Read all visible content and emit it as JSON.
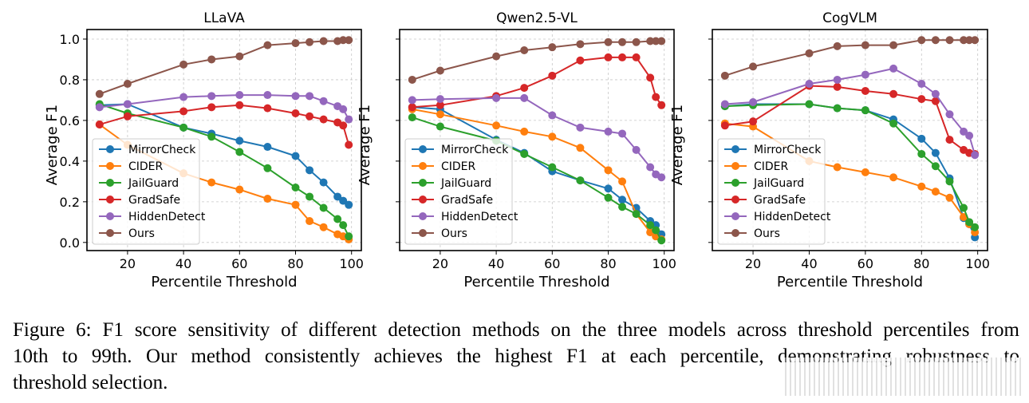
{
  "chart_data": [
    {
      "type": "line",
      "title": "LLaVA",
      "xlabel": "Percentile Threshold",
      "ylabel": "Average F1",
      "xlim": [
        5.5,
        103.5
      ],
      "ylim": [
        -0.04,
        1.047
      ],
      "xticks": [
        20,
        40,
        60,
        80,
        100
      ],
      "yticks": [
        0.0,
        0.2,
        0.4,
        0.6,
        0.8,
        1.0
      ],
      "ytick_labels": [
        "0.0",
        "0.2",
        "0.4",
        "0.6",
        "0.8",
        "1.0"
      ],
      "show_ytick_labels": true,
      "grid": true,
      "legend": "lower-left",
      "x": [
        10,
        20,
        40,
        50,
        60,
        70,
        80,
        85,
        90,
        95,
        97,
        99
      ],
      "series": [
        {
          "name": "MirrorCheck",
          "color": "#1f77b4",
          "values": [
            0.675,
            0.68,
            0.565,
            0.535,
            0.5,
            0.47,
            0.425,
            0.355,
            0.295,
            0.225,
            0.205,
            0.185
          ]
        },
        {
          "name": "CIDER",
          "color": "#ff7f0e",
          "values": [
            0.58,
            0.48,
            0.34,
            0.295,
            0.26,
            0.215,
            0.185,
            0.105,
            0.075,
            0.04,
            0.03,
            0.015
          ]
        },
        {
          "name": "JailGuard",
          "color": "#2ca02c",
          "values": [
            0.68,
            0.635,
            0.565,
            0.52,
            0.445,
            0.365,
            0.27,
            0.225,
            0.17,
            0.115,
            0.085,
            0.03
          ]
        },
        {
          "name": "GradSafe",
          "color": "#d62728",
          "values": [
            0.58,
            0.62,
            0.645,
            0.665,
            0.675,
            0.66,
            0.635,
            0.62,
            0.605,
            0.59,
            0.575,
            0.48
          ]
        },
        {
          "name": "HiddenDetect",
          "color": "#9467bd",
          "values": [
            0.665,
            0.68,
            0.715,
            0.72,
            0.725,
            0.725,
            0.72,
            0.72,
            0.695,
            0.67,
            0.655,
            0.605
          ]
        },
        {
          "name": "Ours",
          "color": "#8c564b",
          "values": [
            0.73,
            0.78,
            0.875,
            0.9,
            0.915,
            0.97,
            0.98,
            0.985,
            0.99,
            0.99,
            0.995,
            0.995
          ]
        }
      ]
    },
    {
      "type": "line",
      "title": "Qwen2.5-VL",
      "xlabel": "Percentile Threshold",
      "ylabel": "Average F1",
      "xlim": [
        5.5,
        103.5
      ],
      "ylim": [
        -0.04,
        1.047
      ],
      "xticks": [
        20,
        40,
        60,
        80,
        100
      ],
      "yticks": [
        0.0,
        0.2,
        0.4,
        0.6,
        0.8,
        1.0
      ],
      "ytick_labels": [
        "0.0",
        "0.2",
        "0.4",
        "0.6",
        "0.8",
        "1.0"
      ],
      "show_ytick_labels": false,
      "grid": true,
      "legend": "lower-left",
      "x": [
        10,
        20,
        40,
        50,
        60,
        70,
        80,
        85,
        90,
        95,
        97,
        99
      ],
      "series": [
        {
          "name": "MirrorCheck",
          "color": "#1f77b4",
          "values": [
            0.665,
            0.655,
            0.505,
            0.44,
            0.35,
            0.305,
            0.265,
            0.21,
            0.17,
            0.105,
            0.085,
            0.04
          ]
        },
        {
          "name": "CIDER",
          "color": "#ff7f0e",
          "values": [
            0.655,
            0.63,
            0.575,
            0.545,
            0.52,
            0.465,
            0.355,
            0.3,
            0.14,
            0.05,
            0.03,
            0.015
          ]
        },
        {
          "name": "JailGuard",
          "color": "#2ca02c",
          "values": [
            0.615,
            0.57,
            0.5,
            0.435,
            0.37,
            0.305,
            0.22,
            0.175,
            0.14,
            0.085,
            0.06,
            0.01
          ]
        },
        {
          "name": "GradSafe",
          "color": "#d62728",
          "values": [
            0.665,
            0.675,
            0.72,
            0.76,
            0.82,
            0.895,
            0.91,
            0.91,
            0.91,
            0.81,
            0.715,
            0.675
          ]
        },
        {
          "name": "HiddenDetect",
          "color": "#9467bd",
          "values": [
            0.7,
            0.705,
            0.71,
            0.71,
            0.625,
            0.565,
            0.545,
            0.535,
            0.455,
            0.37,
            0.335,
            0.32
          ]
        },
        {
          "name": "Ours",
          "color": "#8c564b",
          "values": [
            0.8,
            0.845,
            0.915,
            0.945,
            0.96,
            0.975,
            0.985,
            0.985,
            0.985,
            0.99,
            0.99,
            0.99
          ]
        }
      ]
    },
    {
      "type": "line",
      "title": "CogVLM",
      "xlabel": "Percentile Threshold",
      "ylabel": "Average F1",
      "xlim": [
        5.5,
        103.5
      ],
      "ylim": [
        -0.04,
        1.047
      ],
      "xticks": [
        20,
        40,
        60,
        80,
        100
      ],
      "yticks": [
        0.0,
        0.2,
        0.4,
        0.6,
        0.8,
        1.0
      ],
      "ytick_labels": [
        "0.0",
        "0.2",
        "0.4",
        "0.6",
        "0.8",
        "1.0"
      ],
      "show_ytick_labels": false,
      "grid": true,
      "legend": "lower-left",
      "x": [
        10,
        20,
        40,
        50,
        60,
        70,
        80,
        85,
        90,
        95,
        97,
        99
      ],
      "series": [
        {
          "name": "MirrorCheck",
          "color": "#1f77b4",
          "values": [
            0.67,
            0.68,
            0.68,
            0.66,
            0.65,
            0.605,
            0.51,
            0.44,
            0.315,
            0.12,
            0.09,
            0.025
          ]
        },
        {
          "name": "CIDER",
          "color": "#ff7f0e",
          "values": [
            0.585,
            0.57,
            0.4,
            0.37,
            0.345,
            0.32,
            0.275,
            0.25,
            0.22,
            0.125,
            0.09,
            0.05
          ]
        },
        {
          "name": "JailGuard",
          "color": "#2ca02c",
          "values": [
            0.67,
            0.675,
            0.68,
            0.66,
            0.65,
            0.585,
            0.435,
            0.375,
            0.3,
            0.17,
            0.1,
            0.075
          ]
        },
        {
          "name": "GradSafe",
          "color": "#d62728",
          "values": [
            0.575,
            0.595,
            0.77,
            0.765,
            0.745,
            0.73,
            0.705,
            0.695,
            0.505,
            0.455,
            0.44,
            0.435
          ]
        },
        {
          "name": "HiddenDetect",
          "color": "#9467bd",
          "values": [
            0.68,
            0.69,
            0.78,
            0.8,
            0.825,
            0.855,
            0.78,
            0.73,
            0.63,
            0.545,
            0.525,
            0.43
          ]
        },
        {
          "name": "Ours",
          "color": "#8c564b",
          "values": [
            0.82,
            0.865,
            0.93,
            0.965,
            0.97,
            0.97,
            0.995,
            0.995,
            0.995,
            0.995,
            0.995,
            0.995
          ]
        }
      ]
    }
  ],
  "caption": {
    "lines": [
      "Figure 6: F1 score sensitivity of different detection methods on the three models across threshold percentiles from",
      "10th to 99th. Our method consistently achieves the highest F1 at each percentile, demonstrating robustness to",
      "threshold selection."
    ]
  }
}
